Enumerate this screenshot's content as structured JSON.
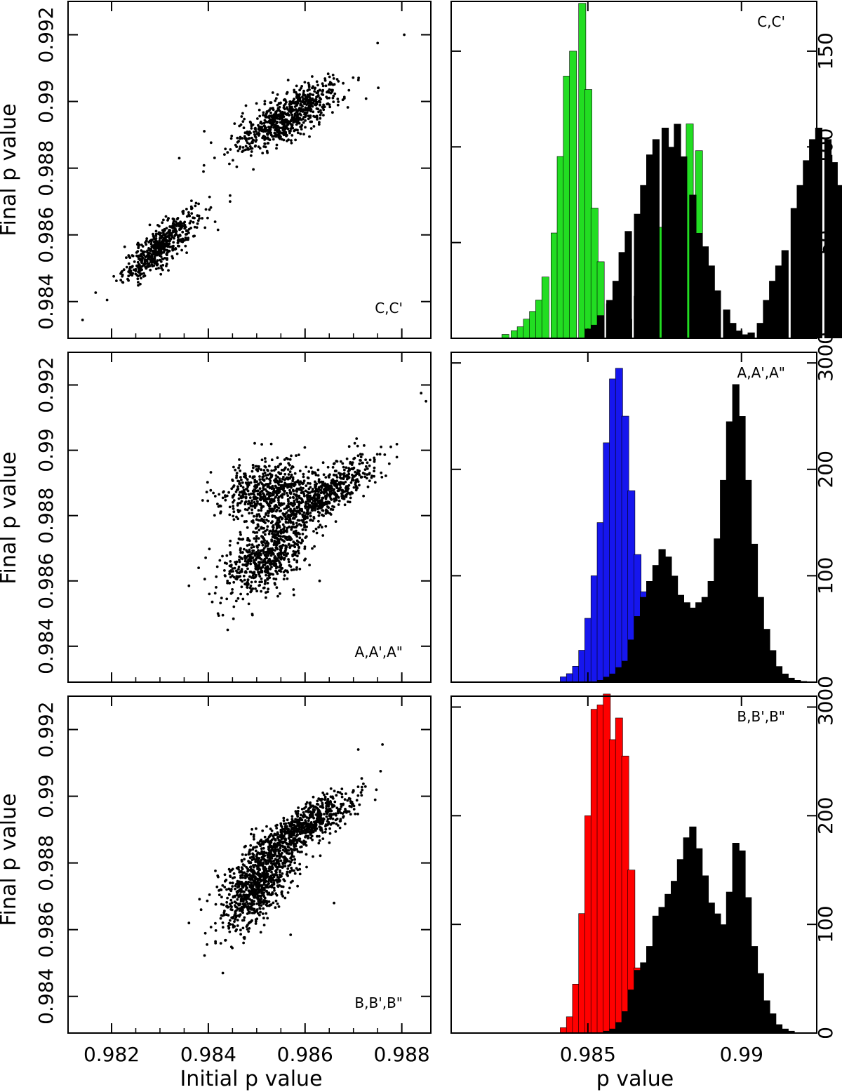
{
  "figure": {
    "left_xlabel": "Initial p value",
    "right_xlabel": "p value",
    "ylabel": "Final p value"
  },
  "chart_data": [
    {
      "type": "scatter",
      "id": "scatter_c",
      "panel": "top-left",
      "label": "C,C'",
      "xlim": [
        0.9811,
        0.9886
      ],
      "ylim": [
        0.9829,
        0.993
      ],
      "xticks": [
        0.982,
        0.984,
        0.986,
        0.988
      ],
      "xtick_labels": [],
      "yticks": [
        0.984,
        0.986,
        0.988,
        0.99,
        0.992
      ],
      "ytick_labels": [
        "0.984",
        "0.986",
        "0.988",
        "0.99",
        "0.992"
      ],
      "clusters": [
        {
          "n": 520,
          "cx": 0.983,
          "cy": 0.98565,
          "sx": 0.00038,
          "sy": 0.00052,
          "r": 0.82
        },
        {
          "n": 720,
          "cx": 0.98565,
          "cy": 0.98955,
          "sx": 0.00055,
          "sy": 0.00055,
          "r": 0.78
        }
      ],
      "outliers": [
        [
          0.9814,
          0.98345
        ],
        [
          0.98805,
          0.992
        ],
        [
          0.9875,
          0.99175
        ],
        [
          0.9834,
          0.9883
        ],
        [
          0.9842,
          0.98615
        ],
        [
          0.98445,
          0.987
        ],
        [
          0.9839,
          0.9879
        ],
        [
          0.98445,
          0.98718
        ]
      ]
    },
    {
      "type": "bar",
      "id": "hist_c",
      "panel": "top-right",
      "label": "C,C'",
      "xlim": [
        0.98055,
        0.99245
      ],
      "ylim": [
        0,
        176
      ],
      "xticks": [
        0.985,
        0.99
      ],
      "xtick_labels": [],
      "yticks": [
        0,
        50,
        100,
        150
      ],
      "ytick_labels": [
        "0",
        "50",
        "100",
        "150"
      ],
      "bin_width": 0.000225,
      "series": [
        {
          "color": "#22dd22",
          "bins": [
            [
              0.982,
              0
            ],
            [
              0.9822,
              2
            ],
            [
              0.9825,
              4
            ],
            [
              0.9827,
              6
            ],
            [
              0.9829,
              10
            ],
            [
              0.9831,
              14
            ],
            [
              0.9833,
              20
            ],
            [
              0.9835,
              32
            ],
            [
              0.9838,
              55
            ],
            [
              0.984,
              95
            ],
            [
              0.9842,
              137
            ],
            [
              0.9844,
              150
            ],
            [
              0.9847,
              175
            ],
            [
              0.9849,
              130
            ],
            [
              0.9851,
              68
            ],
            [
              0.9853,
              40
            ],
            [
              0.9856,
              18
            ],
            [
              0.9858,
              8
            ],
            [
              0.986,
              6
            ],
            [
              0.9862,
              10
            ],
            [
              0.9865,
              22
            ],
            [
              0.9867,
              25
            ],
            [
              0.9869,
              28
            ],
            [
              0.9871,
              40
            ],
            [
              0.9873,
              58
            ],
            [
              0.9876,
              70
            ],
            [
              0.9878,
              80
            ],
            [
              0.988,
              88
            ],
            [
              0.9882,
              112
            ],
            [
              0.9885,
              98
            ]
          ]
        },
        {
          "color": "#000000",
          "bins": [
            [
              0.9849,
              5
            ],
            [
              0.9851,
              7
            ],
            [
              0.9853,
              12
            ],
            [
              0.9856,
              20
            ],
            [
              0.9858,
              30
            ],
            [
              0.986,
              45
            ],
            [
              0.9862,
              56
            ],
            [
              0.9865,
              65
            ],
            [
              0.9867,
              80
            ],
            [
              0.9869,
              96
            ],
            [
              0.9871,
              104
            ],
            [
              0.9874,
              110
            ],
            [
              0.9876,
              100
            ],
            [
              0.9878,
              112
            ],
            [
              0.988,
              95
            ],
            [
              0.9883,
              75
            ],
            [
              0.9885,
              55
            ],
            [
              0.9887,
              48
            ],
            [
              0.9889,
              38
            ],
            [
              0.9891,
              25
            ],
            [
              0.9894,
              15
            ],
            [
              0.9896,
              8
            ],
            [
              0.9898,
              4
            ],
            [
              0.99,
              2
            ],
            [
              0.9902,
              3
            ],
            [
              0.9905,
              8
            ],
            [
              0.9907,
              20
            ],
            [
              0.9909,
              30
            ],
            [
              0.9911,
              38
            ],
            [
              0.9913,
              46
            ],
            [
              0.9916,
              68
            ],
            [
              0.9918,
              80
            ],
            [
              0.992,
              93
            ],
            [
              0.9922,
              104
            ],
            [
              0.9924,
              110
            ],
            [
              0.9927,
              104
            ],
            [
              0.9929,
              92
            ],
            [
              0.9931,
              80
            ],
            [
              0.9933,
              65
            ],
            [
              0.9935,
              50
            ],
            [
              0.9938,
              40
            ],
            [
              0.994,
              30
            ],
            [
              0.9942,
              18
            ],
            [
              0.9944,
              8
            ],
            [
              0.9947,
              3
            ],
            [
              0.9949,
              1
            ]
          ]
        }
      ]
    },
    {
      "type": "scatter",
      "id": "scatter_a",
      "panel": "middle-left",
      "label": "A,A',A\"",
      "xlim": [
        0.9811,
        0.9886
      ],
      "ylim": [
        0.9829,
        0.993
      ],
      "xticks": [
        0.982,
        0.984,
        0.986,
        0.988
      ],
      "xtick_labels": [],
      "yticks": [
        0.984,
        0.986,
        0.988,
        0.99,
        0.992
      ],
      "ytick_labels": [
        "0.984",
        "0.986",
        "0.988",
        "0.99",
        "0.992"
      ],
      "clusters": [
        {
          "n": 520,
          "cx": 0.9852,
          "cy": 0.9888,
          "sx": 0.00045,
          "sy": 0.00045,
          "r": 0.3
        },
        {
          "n": 680,
          "cx": 0.9852,
          "cy": 0.98675,
          "sx": 0.00045,
          "sy": 0.00065,
          "r": 0.55
        },
        {
          "n": 620,
          "cx": 0.98635,
          "cy": 0.9886,
          "sx": 0.00055,
          "sy": 0.0006,
          "r": 0.8
        }
      ],
      "outliers": [
        [
          0.9884,
          0.99175
        ],
        [
          0.9885,
          0.9915
        ],
        [
          0.9836,
          0.98585
        ],
        [
          0.9842,
          0.985
        ],
        [
          0.9843,
          0.98495
        ],
        [
          0.9844,
          0.9845
        ],
        [
          0.9838,
          0.9864
        ],
        [
          0.9863,
          0.986
        ]
      ]
    },
    {
      "type": "bar",
      "id": "hist_a",
      "panel": "middle-right",
      "label": "A,A',A\"",
      "xlim": [
        0.98055,
        0.99245
      ],
      "ylim": [
        0,
        310
      ],
      "xticks": [
        0.985,
        0.99
      ],
      "xtick_labels": [],
      "yticks": [
        0,
        100,
        200,
        300
      ],
      "ytick_labels": [
        "0",
        "100",
        "200",
        "300"
      ],
      "bin_width": 0.000225,
      "series": [
        {
          "color": "#1616ee",
          "bins": [
            [
              0.9839,
              0
            ],
            [
              0.9841,
              5
            ],
            [
              0.9843,
              8
            ],
            [
              0.9845,
              15
            ],
            [
              0.9847,
              30
            ],
            [
              0.9849,
              60
            ],
            [
              0.9851,
              100
            ],
            [
              0.9853,
              150
            ],
            [
              0.9855,
              225
            ],
            [
              0.9857,
              285
            ],
            [
              0.9859,
              295
            ],
            [
              0.9861,
              250
            ],
            [
              0.9863,
              180
            ],
            [
              0.9865,
              120
            ],
            [
              0.9867,
              85
            ],
            [
              0.9869,
              60
            ],
            [
              0.9871,
              50
            ],
            [
              0.9873,
              30
            ],
            [
              0.9875,
              15
            ],
            [
              0.9877,
              8
            ],
            [
              0.9879,
              4
            ],
            [
              0.9881,
              2
            ],
            [
              0.9883,
              1
            ]
          ]
        },
        {
          "color": "#000000",
          "bins": [
            [
              0.9853,
              2
            ],
            [
              0.9855,
              5
            ],
            [
              0.9857,
              8
            ],
            [
              0.9859,
              14
            ],
            [
              0.9861,
              20
            ],
            [
              0.9863,
              40
            ],
            [
              0.9865,
              62
            ],
            [
              0.9867,
              80
            ],
            [
              0.9869,
              95
            ],
            [
              0.9871,
              110
            ],
            [
              0.9873,
              125
            ],
            [
              0.9875,
              118
            ],
            [
              0.9877,
              100
            ],
            [
              0.9879,
              82
            ],
            [
              0.9881,
              75
            ],
            [
              0.9883,
              70
            ],
            [
              0.9885,
              75
            ],
            [
              0.9887,
              80
            ],
            [
              0.9889,
              95
            ],
            [
              0.9891,
              135
            ],
            [
              0.9893,
              190
            ],
            [
              0.9895,
              245
            ],
            [
              0.9897,
              280
            ],
            [
              0.9899,
              250
            ],
            [
              0.9901,
              190
            ],
            [
              0.9903,
              130
            ],
            [
              0.9905,
              80
            ],
            [
              0.9907,
              50
            ],
            [
              0.9909,
              30
            ],
            [
              0.9911,
              15
            ],
            [
              0.9913,
              8
            ],
            [
              0.9915,
              4
            ],
            [
              0.9917,
              2
            ],
            [
              0.9919,
              1
            ]
          ]
        }
      ]
    },
    {
      "type": "scatter",
      "id": "scatter_b",
      "panel": "bottom-left",
      "label": "B,B',B\"",
      "xlim": [
        0.9811,
        0.9886
      ],
      "ylim": [
        0.9829,
        0.993
      ],
      "xticks": [
        0.982,
        0.984,
        0.986,
        0.988
      ],
      "xtick_labels": [
        "0.982",
        "0.984",
        "0.986",
        "0.988"
      ],
      "yticks": [
        0.984,
        0.986,
        0.988,
        0.99,
        0.992
      ],
      "ytick_labels": [
        "0.984",
        "0.986",
        "0.988",
        "0.99",
        "0.992"
      ],
      "clusters": [
        {
          "n": 900,
          "cx": 0.985,
          "cy": 0.9874,
          "sx": 0.00038,
          "sy": 0.0007,
          "r": 0.6
        },
        {
          "n": 680,
          "cx": 0.986,
          "cy": 0.9891,
          "sx": 0.00052,
          "sy": 0.00052,
          "r": 0.8
        }
      ],
      "outliers": [
        [
          0.9876,
          0.99155
        ],
        [
          0.9871,
          0.9914
        ],
        [
          0.9836,
          0.9862
        ],
        [
          0.98385,
          0.9866
        ],
        [
          0.9843,
          0.9847
        ],
        [
          0.9866,
          0.9868
        ]
      ]
    },
    {
      "type": "bar",
      "id": "hist_b",
      "panel": "bottom-right",
      "label": "B,B',B\"",
      "xlim": [
        0.98055,
        0.99245
      ],
      "ylim": [
        0,
        310
      ],
      "xticks": [
        0.985,
        0.99
      ],
      "xtick_labels": [
        "0.985",
        "0.99"
      ],
      "yticks": [
        0,
        100,
        200,
        300
      ],
      "ytick_labels": [
        "0",
        "100",
        "200",
        "300"
      ],
      "bin_width": 0.000225,
      "series": [
        {
          "color": "#ff0000",
          "bins": [
            [
              0.9839,
              0
            ],
            [
              0.9841,
              5
            ],
            [
              0.9843,
              15
            ],
            [
              0.9845,
              45
            ],
            [
              0.9847,
              110
            ],
            [
              0.9849,
              200
            ],
            [
              0.9851,
              298
            ],
            [
              0.9853,
              302
            ],
            [
              0.9855,
              312
            ],
            [
              0.9857,
              270
            ],
            [
              0.9859,
              290
            ],
            [
              0.9861,
              255
            ],
            [
              0.9863,
              150
            ],
            [
              0.9865,
              60
            ],
            [
              0.9867,
              20
            ],
            [
              0.9869,
              8
            ],
            [
              0.9871,
              3
            ],
            [
              0.9873,
              1
            ]
          ]
        },
        {
          "color": "#000000",
          "bins": [
            [
              0.9855,
              2
            ],
            [
              0.9857,
              4
            ],
            [
              0.9859,
              10
            ],
            [
              0.9861,
              20
            ],
            [
              0.9863,
              40
            ],
            [
              0.9865,
              58
            ],
            [
              0.9867,
              65
            ],
            [
              0.9869,
              80
            ],
            [
              0.9871,
              108
            ],
            [
              0.9873,
              116
            ],
            [
              0.9875,
              128
            ],
            [
              0.9877,
              140
            ],
            [
              0.9879,
              160
            ],
            [
              0.9881,
              180
            ],
            [
              0.9883,
              190
            ],
            [
              0.9885,
              170
            ],
            [
              0.9887,
              145
            ],
            [
              0.9889,
              120
            ],
            [
              0.9891,
              110
            ],
            [
              0.9893,
              100
            ],
            [
              0.9895,
              130
            ],
            [
              0.9897,
              175
            ],
            [
              0.9899,
              168
            ],
            [
              0.9901,
              125
            ],
            [
              0.9903,
              80
            ],
            [
              0.9905,
              55
            ],
            [
              0.9907,
              30
            ],
            [
              0.9909,
              18
            ],
            [
              0.9911,
              8
            ],
            [
              0.9913,
              4
            ],
            [
              0.9915,
              2
            ]
          ]
        }
      ]
    }
  ]
}
